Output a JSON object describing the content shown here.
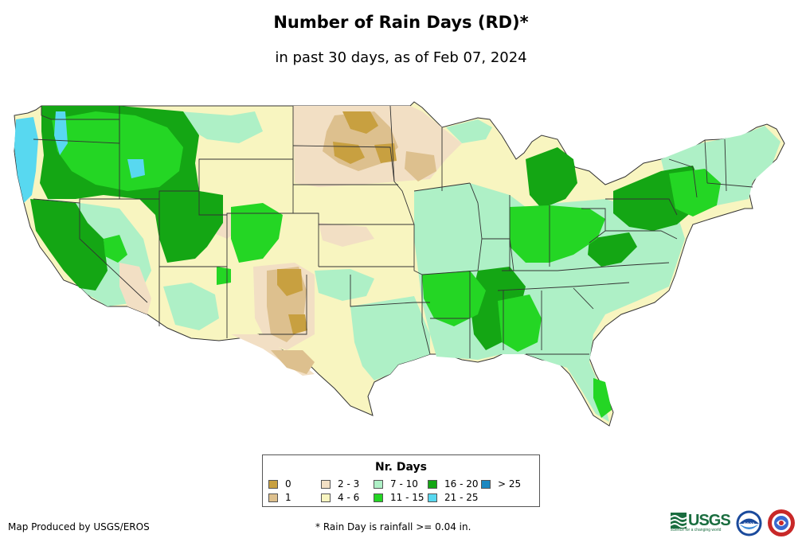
{
  "title": "Number of Rain Days (RD)*",
  "subtitle": "in past 30 days, as of Feb 07, 2024",
  "legend": {
    "title": "Nr. Days",
    "items": [
      {
        "label": "0",
        "color": "#c8a040"
      },
      {
        "label": "1",
        "color": "#ddc08e"
      },
      {
        "label": "2 - 3",
        "color": "#f2dfc4"
      },
      {
        "label": "4 - 6",
        "color": "#f8f5c0"
      },
      {
        "label": "7 - 10",
        "color": "#aef0c6"
      },
      {
        "label": "11 - 15",
        "color": "#24d624"
      },
      {
        "label": "16 - 20",
        "color": "#14a614"
      },
      {
        "label": "21 - 25",
        "color": "#58d8f0"
      },
      {
        "label": "> 25",
        "color": "#1c88c0"
      }
    ]
  },
  "footer": {
    "producer": "Map Produced by USGS/EROS",
    "note": "* Rain Day is rainfall >= 0.04 in."
  },
  "logos": {
    "usgs": "USGS",
    "usgs_tagline": "science for a changing world",
    "noaa": "noaa"
  }
}
